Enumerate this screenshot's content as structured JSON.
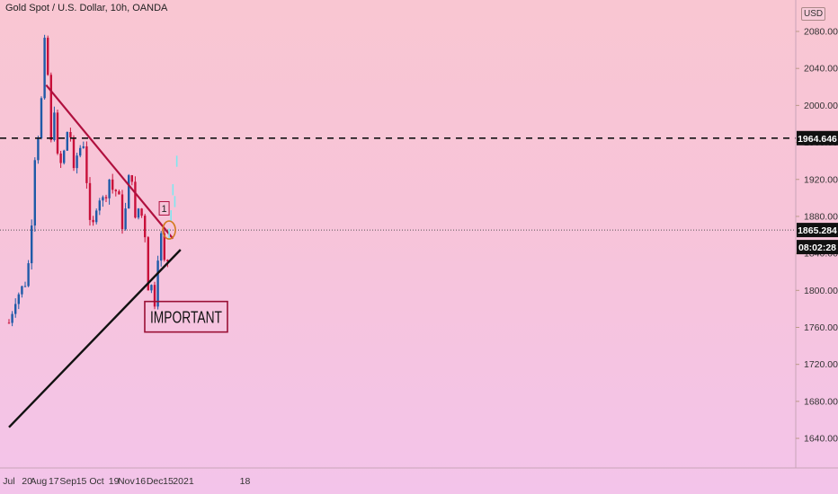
{
  "header": {
    "title": "Gold Spot / U.S. Dollar, 10h, OANDA",
    "currency": "USD"
  },
  "price_labels": {
    "resistance": "1964.646",
    "current": "1865.284",
    "countdown": "08:02:28"
  },
  "annotations": {
    "important": "IMPORTANT",
    "marker": "1"
  },
  "colors": {
    "up": "#1f5aa8",
    "down": "#c8103a",
    "downtrend": "#b0103e",
    "uptrend": "#111111",
    "projection": "#7ee7f0"
  },
  "chart_data": {
    "type": "candlestick",
    "title": "Gold Spot / U.S. Dollar, 10h, OANDA",
    "y_ticks": [
      "2080.000",
      "2040.000",
      "2000.000",
      "1960.000",
      "1920.000",
      "1880.000",
      "1840.000",
      "1800.000",
      "1760.000",
      "1720.000",
      "1680.000",
      "1640.000"
    ],
    "x_ticks": [
      "Jul",
      "20",
      "Aug",
      "17",
      "Sep",
      "15",
      "Oct",
      "19",
      "Nov",
      "16",
      "Dec",
      "15",
      "2021",
      "18"
    ],
    "ylim": [
      1608,
      2114
    ],
    "horizontal_levels": [
      1964.646
    ],
    "current_price": 1865.284,
    "price_path": [
      {
        "x": "Jul 1",
        "y": 1765
      },
      {
        "x": "Jul 8",
        "y": 1792
      },
      {
        "x": "Jul 15",
        "y": 1803
      },
      {
        "x": "Jul 20",
        "y": 1812
      },
      {
        "x": "Jul 24",
        "y": 1860
      },
      {
        "x": "Jul 28",
        "y": 1945
      },
      {
        "x": "Aug 3",
        "y": 1985
      },
      {
        "x": "Aug 7",
        "y": 2070
      },
      {
        "x": "Aug 11",
        "y": 2030
      },
      {
        "x": "Aug 12",
        "y": 1920
      },
      {
        "x": "Aug 17",
        "y": 2010
      },
      {
        "x": "Aug 20",
        "y": 1945
      },
      {
        "x": "Aug 24",
        "y": 1935
      },
      {
        "x": "Aug 28",
        "y": 1950
      },
      {
        "x": "Sep 2",
        "y": 1985
      },
      {
        "x": "Sep 7",
        "y": 1925
      },
      {
        "x": "Sep 10",
        "y": 1945
      },
      {
        "x": "Sep 15",
        "y": 1958
      },
      {
        "x": "Sep 18",
        "y": 1960
      },
      {
        "x": "Sep 22",
        "y": 1895
      },
      {
        "x": "Sep 25",
        "y": 1855
      },
      {
        "x": "Oct 1",
        "y": 1895
      },
      {
        "x": "Oct 6",
        "y": 1905
      },
      {
        "x": "Oct 9",
        "y": 1890
      },
      {
        "x": "Oct 13",
        "y": 1925
      },
      {
        "x": "Oct 19",
        "y": 1905
      },
      {
        "x": "Oct 23",
        "y": 1910
      },
      {
        "x": "Oct 28",
        "y": 1870
      },
      {
        "x": "Nov 2",
        "y": 1895
      },
      {
        "x": "Nov 6",
        "y": 1955
      },
      {
        "x": "Nov 9",
        "y": 1865
      },
      {
        "x": "Nov 13",
        "y": 1890
      },
      {
        "x": "Nov 16",
        "y": 1885
      },
      {
        "x": "Nov 20",
        "y": 1872
      },
      {
        "x": "Nov 24",
        "y": 1805
      },
      {
        "x": "Nov 27",
        "y": 1810
      },
      {
        "x": "Nov 30",
        "y": 1770
      },
      {
        "x": "Dec 3",
        "y": 1835
      },
      {
        "x": "Dec 6",
        "y": 1845
      },
      {
        "x": "Dec 9",
        "y": 1870
      },
      {
        "x": "Dec 11",
        "y": 1830
      },
      {
        "x": "Dec 14",
        "y": 1825
      },
      {
        "x": "Dec 16",
        "y": 1865
      }
    ],
    "projection_path": [
      {
        "x": "Dec 16",
        "y": 1865
      },
      {
        "x": "Dec 18",
        "y": 1885
      },
      {
        "x": "Dec 20",
        "y": 1912
      },
      {
        "x": "Dec 22",
        "y": 1898
      },
      {
        "x": "Dec 25",
        "y": 1965
      }
    ],
    "downtrend_line": [
      {
        "x": "Aug 9",
        "y": 2022
      },
      {
        "x": "Dec 20",
        "y": 1856
      }
    ],
    "uptrend_line": [
      {
        "x": "Jul 1",
        "y": 1652
      },
      {
        "x": "Dec 28",
        "y": 1844
      }
    ]
  }
}
